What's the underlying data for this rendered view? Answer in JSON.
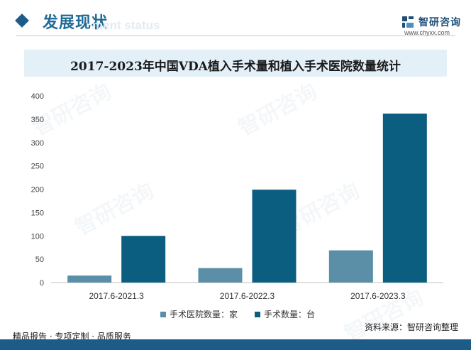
{
  "header": {
    "section_title": "发展现状",
    "section_subtitle": "ment status",
    "brand_name": "智研咨询",
    "brand_url": "www.chyxx.com"
  },
  "watermark_text": "智研咨询",
  "chart_data": {
    "type": "bar",
    "title": "2017-2023年中国VDA植入手术量和植入手术医院数量统计",
    "categories": [
      "2017.6-2021.3",
      "2017.6-2022.3",
      "2017.6-2023.3"
    ],
    "series": [
      {
        "name": "手术医院数量：家",
        "values": [
          15,
          31,
          69
        ],
        "color": "#5b8fa8"
      },
      {
        "name": "手术数量：台",
        "values": [
          100,
          199,
          362
        ],
        "color": "#0b5e80"
      }
    ],
    "ylim": [
      0,
      400
    ],
    "yticks": [
      0,
      50,
      100,
      150,
      200,
      250,
      300,
      350,
      400
    ],
    "xlabel": "",
    "ylabel": "",
    "grid": false,
    "legend": "bottom"
  },
  "footer": {
    "left": "精品报告 · 专项定制 · 品质服务",
    "source": "资料来源：智研咨询整理"
  }
}
